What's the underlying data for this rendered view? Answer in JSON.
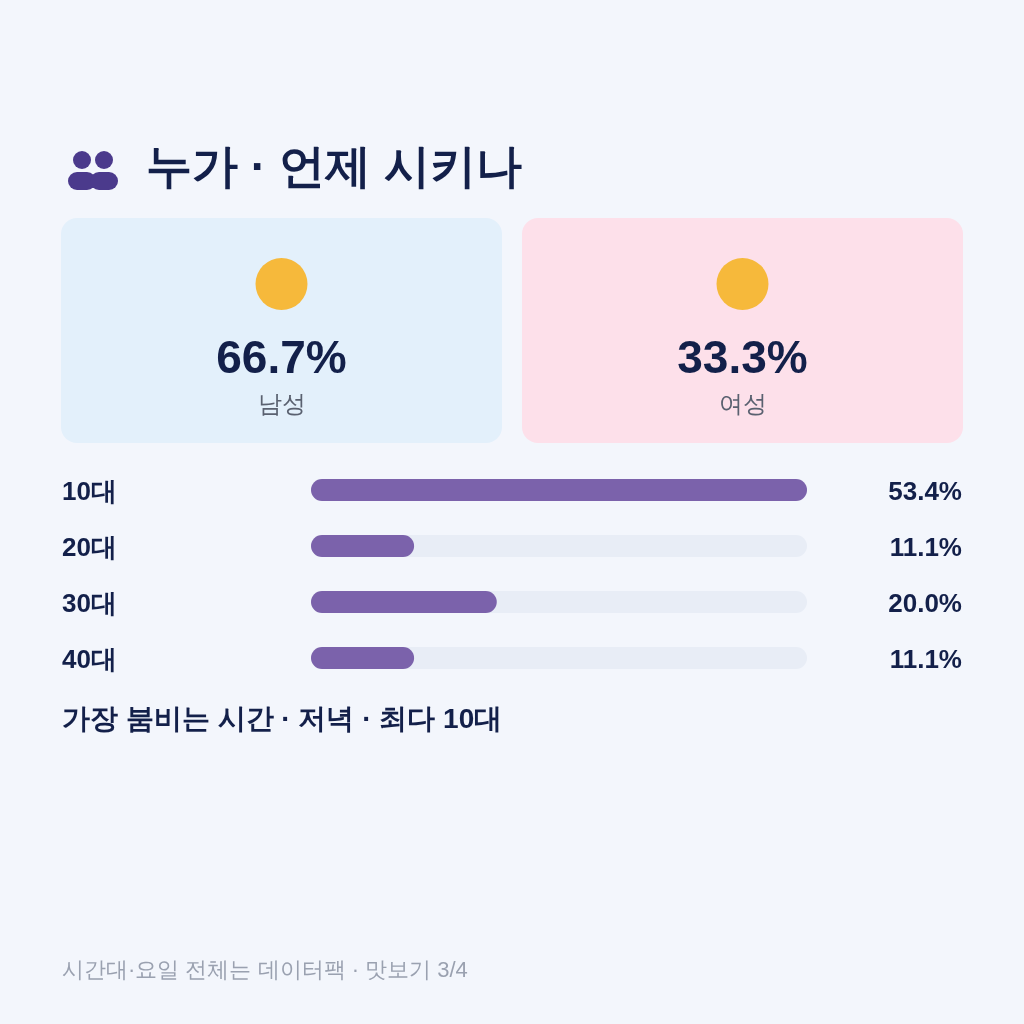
{
  "chart_data": [
    {
      "type": "other",
      "title": "누가 · 언제 시키나",
      "categories": [
        "남성",
        "여성"
      ],
      "value_labels": [
        "66.7%",
        "33.3%"
      ],
      "colors": [
        "#e3f0fb",
        "#fde0ea"
      ]
    },
    {
      "type": "bar",
      "orientation": "horizontal",
      "categories": [
        "10대",
        "20대",
        "30대",
        "40대"
      ],
      "values": [
        53.4,
        11.1,
        20.0,
        11.1
      ],
      "value_labels": [
        "53.4%",
        "11.1%",
        "20.0%",
        "11.1%"
      ],
      "color": "#7b62ab",
      "annotations": [
        "가장 붐비는 시간 · 저녁 · 최다 10대",
        "시간대·요일 전체는 데이터팩 · 맛보기 3/4"
      ]
    }
  ]
}
